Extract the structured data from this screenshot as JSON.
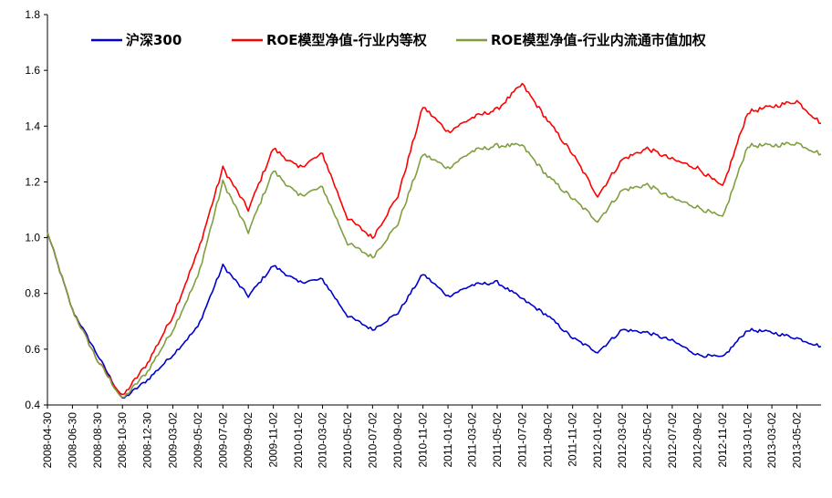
{
  "chart_data": {
    "type": "line",
    "title": "",
    "xlabel": "",
    "ylabel": "",
    "ylim": [
      0.4,
      1.8
    ],
    "yticks": [
      "0.4",
      "0.6",
      "0.8",
      "1.0",
      "1.2",
      "1.4",
      "1.6",
      "1.8"
    ],
    "xticks": [
      "2008-04-30",
      "2008-06-30",
      "2008-08-30",
      "2008-10-30",
      "2008-12-30",
      "2009-03-02",
      "2009-05-02",
      "2009-07-02",
      "2009-09-02",
      "2009-11-02",
      "2010-01-02",
      "2010-03-02",
      "2010-05-02",
      "2010-07-02",
      "2010-09-02",
      "2010-11-02",
      "2011-01-02",
      "2011-03-02",
      "2011-05-02",
      "2011-07-02",
      "2011-09-02",
      "2011-11-02",
      "2012-01-02",
      "2012-03-02",
      "2012-05-02",
      "2012-07-02",
      "2012-09-02",
      "2012-11-02",
      "2013-01-02",
      "2013-03-02",
      "2013-05-02"
    ],
    "x": [
      "2008-04-30",
      "2008-06-30",
      "2008-08-30",
      "2008-10-30",
      "2008-12-30",
      "2009-03-02",
      "2009-05-02",
      "2009-07-02",
      "2009-09-02",
      "2009-11-02",
      "2010-01-02",
      "2010-03-02",
      "2010-05-02",
      "2010-07-02",
      "2010-09-02",
      "2010-11-02",
      "2011-01-02",
      "2011-03-02",
      "2011-05-02",
      "2011-07-02",
      "2011-09-02",
      "2011-11-02",
      "2012-01-02",
      "2012-03-02",
      "2012-05-02",
      "2012-07-02",
      "2012-09-02",
      "2012-11-02",
      "2013-01-02",
      "2013-03-02",
      "2013-05-02",
      "2013-06-30"
    ],
    "grid": false,
    "legend_position": "top",
    "series": [
      {
        "name": "沪深300",
        "color": "#0000CC",
        "values": [
          1.02,
          0.74,
          0.58,
          0.42,
          0.49,
          0.58,
          0.68,
          0.9,
          0.79,
          0.9,
          0.84,
          0.85,
          0.72,
          0.67,
          0.73,
          0.87,
          0.79,
          0.83,
          0.84,
          0.78,
          0.72,
          0.64,
          0.59,
          0.67,
          0.66,
          0.63,
          0.58,
          0.57,
          0.67,
          0.66,
          0.64,
          0.61
        ]
      },
      {
        "name": "ROE模型净值-行业内等权",
        "color": "#FF0000",
        "values": [
          1.02,
          0.74,
          0.56,
          0.43,
          0.55,
          0.72,
          0.95,
          1.25,
          1.1,
          1.32,
          1.25,
          1.3,
          1.07,
          1.0,
          1.15,
          1.47,
          1.38,
          1.43,
          1.46,
          1.55,
          1.42,
          1.3,
          1.15,
          1.28,
          1.32,
          1.28,
          1.25,
          1.18,
          1.45,
          1.47,
          1.49,
          1.41
        ]
      },
      {
        "name": "ROE模型净值-行业内流通市值加权",
        "color": "#7F9F3F",
        "values": [
          1.02,
          0.74,
          0.56,
          0.42,
          0.52,
          0.67,
          0.86,
          1.2,
          1.02,
          1.24,
          1.15,
          1.18,
          0.98,
          0.93,
          1.05,
          1.3,
          1.25,
          1.31,
          1.33,
          1.33,
          1.22,
          1.14,
          1.06,
          1.17,
          1.19,
          1.14,
          1.11,
          1.07,
          1.33,
          1.33,
          1.34,
          1.3
        ]
      }
    ]
  }
}
